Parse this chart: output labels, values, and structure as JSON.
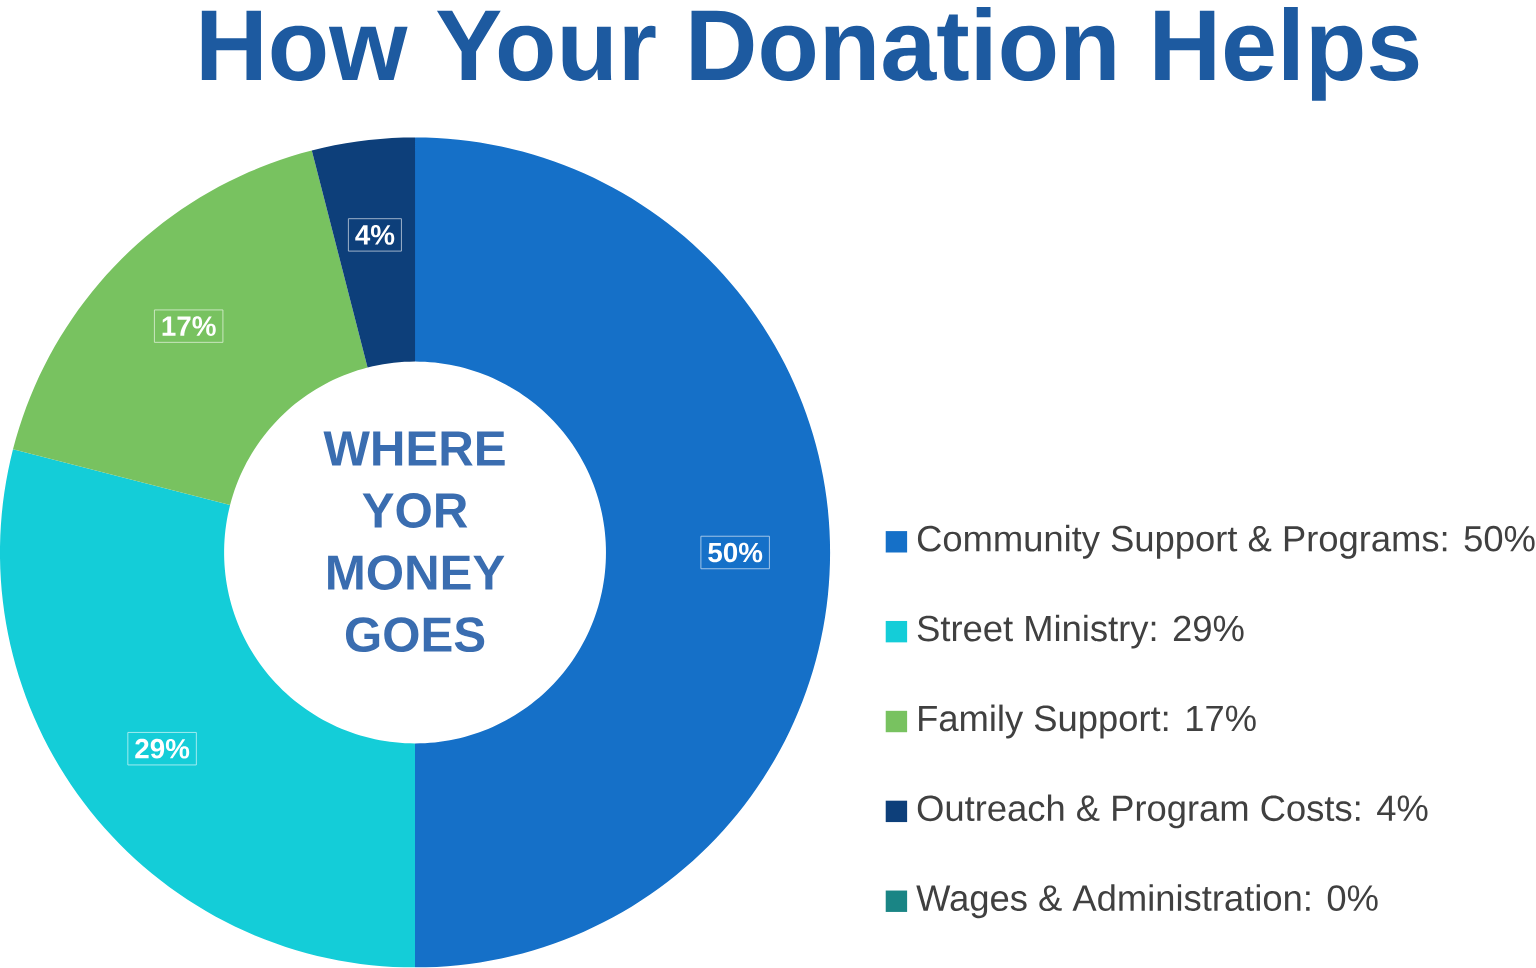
{
  "chart_data": {
    "type": "donut",
    "title": "How Your Donation Helps",
    "categories": [
      "Community Support & Programs: 50%",
      "Street Ministry:  29%",
      "Family Support: 17%",
      "Outreach & Program Costs:  4%",
      "Wages & Administration:  0%"
    ],
    "values": [
      50,
      29,
      17,
      4,
      0
    ],
    "colors": [
      "#1570c8",
      "#14cdd8",
      "#78c260",
      "#0d3f7a",
      "#1a8585"
    ],
    "value_labels": [
      "50%",
      "29%",
      "17%",
      "4%",
      null
    ],
    "annotations": [
      "WHERE YOR MONEY GOES"
    ],
    "legend": "right"
  }
}
